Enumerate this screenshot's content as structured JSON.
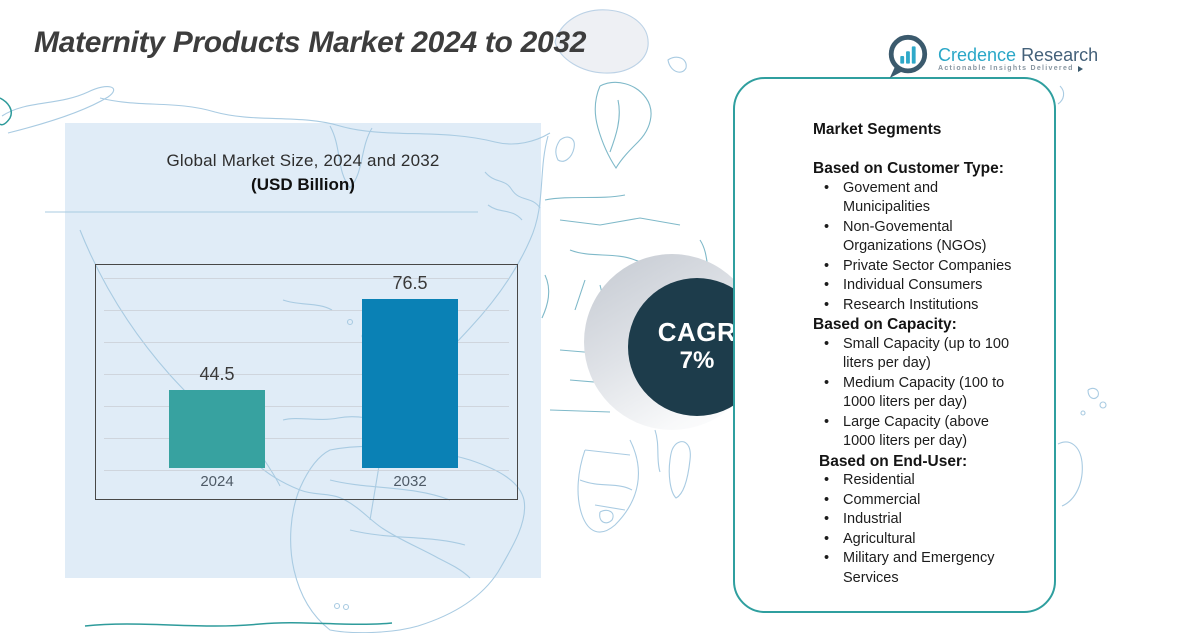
{
  "page_title": "Maternity Products Market 2024 to 2032",
  "logo": {
    "brand": "Credence",
    "brand_suffix": "Research",
    "tagline": "Actionable Insights Delivered"
  },
  "chart_data": {
    "type": "bar",
    "title": "Global Market Size, 2024 and 2032",
    "subtitle": "(USD Billion)",
    "categories": [
      "2024",
      "2032"
    ],
    "values": [
      44.5,
      76.5
    ],
    "value_labels": [
      "44.5",
      "76.5"
    ],
    "bar_colors": [
      "#37a2a0",
      "#0a81b5"
    ],
    "grid": true,
    "legend": false,
    "y_axis_labels_visible": false
  },
  "cagr_badge": {
    "label": "CAGR",
    "value": "7%",
    "circle_color": "#1d3c4b",
    "text_color": "#ffffff"
  },
  "segments_panel": {
    "heading": "Market Segments",
    "border_color": "#2f9f9f",
    "groups": [
      {
        "subheading": "Based on Customer Type:",
        "items": [
          "Govement and Municipalities",
          "Non-Govemental Organizations (NGOs)",
          "Private Sector Companies",
          "Individual Consumers",
          "Research Institutions"
        ]
      },
      {
        "subheading": "Based on Capacity:",
        "items": [
          "Small Capacity (up to 100 liters per day)",
          "Medium Capacity (100 to 1000 liters per day)",
          "Large Capacity (above 1000 liters per day)"
        ]
      },
      {
        "subheading": "Based on End-User:",
        "items": [
          "Residential",
          "Commercial",
          "Industrial",
          "Agricultural",
          "Military and Emergency Services"
        ]
      }
    ]
  },
  "colors": {
    "chart_panel_bg": "#e0ecf7",
    "map_line": "#a9cbe2",
    "accent_teal": "#2e9b9b",
    "title_text": "#3d3d3d"
  }
}
